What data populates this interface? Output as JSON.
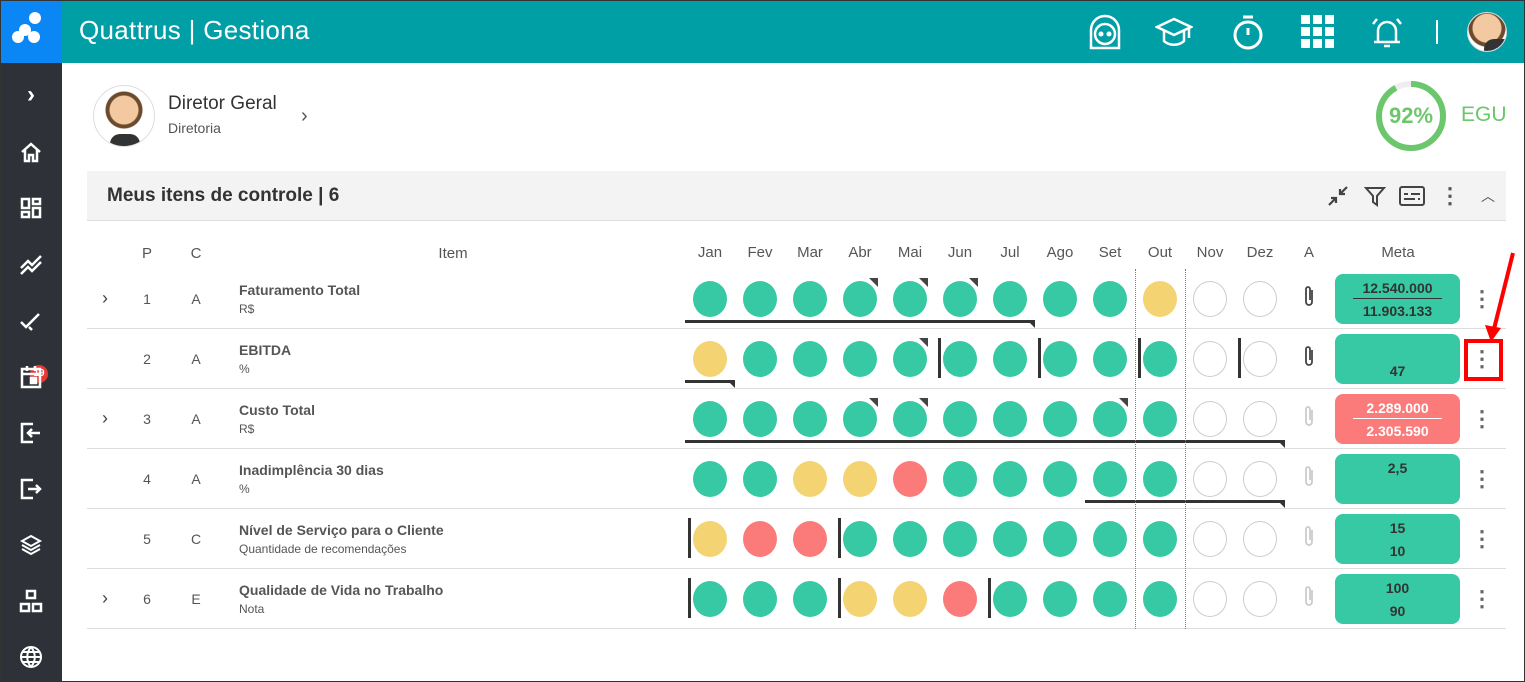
{
  "app": {
    "title": "Quattrus | Gestiona"
  },
  "header_icons": [
    "support-icon",
    "graduation-cap-icon",
    "stopwatch-icon",
    "apps-grid-icon",
    "alarm-bell-icon",
    "user-avatar"
  ],
  "sidebar": {
    "items": [
      "expand",
      "home",
      "dashboard",
      "trends",
      "tasks",
      "calendar",
      "login",
      "logout",
      "layers",
      "structure",
      "globe"
    ],
    "tasks_badge": "19"
  },
  "user": {
    "name": "Diretor Geral",
    "department": "Diretoria"
  },
  "egu": {
    "percent": 92,
    "percent_label": "92%",
    "label": "EGU"
  },
  "panel": {
    "title": "Meus itens de controle | 6"
  },
  "table": {
    "headers": {
      "p": "P",
      "c": "C",
      "item": "Item",
      "a": "A",
      "meta": "Meta"
    },
    "months": [
      "Jan",
      "Fev",
      "Mar",
      "Abr",
      "Mai",
      "Jun",
      "Jul",
      "Ago",
      "Set",
      "Out",
      "Nov",
      "Dez"
    ],
    "rows": [
      {
        "expand": true,
        "p": "1",
        "c": "A",
        "title": "Faturamento Total",
        "unit": "R$",
        "status": [
          "g",
          "g",
          "g",
          "g",
          "g",
          "g",
          "g",
          "g",
          "g",
          "y",
          "e",
          "e"
        ],
        "flags": [
          3,
          4,
          5
        ],
        "bars": [],
        "underline": [
          0,
          6
        ],
        "attachment": true,
        "meta": {
          "type": "green",
          "top": "12.540.000",
          "bottom": "11.903.133",
          "divider": true
        }
      },
      {
        "expand": false,
        "p": "2",
        "c": "A",
        "title": "EBITDA",
        "unit": "%",
        "status": [
          "y",
          "g",
          "g",
          "g",
          "g",
          "g",
          "g",
          "g",
          "g",
          "g",
          "e",
          "e"
        ],
        "flags": [
          4
        ],
        "bars": [
          5,
          7,
          9,
          11
        ],
        "underline": [
          0,
          0
        ],
        "attachment": true,
        "meta": {
          "type": "green",
          "top": "",
          "bottom": "47",
          "divider": false
        }
      },
      {
        "expand": true,
        "p": "3",
        "c": "A",
        "title": "Custo Total",
        "unit": "R$",
        "status": [
          "g",
          "g",
          "g",
          "g",
          "g",
          "g",
          "g",
          "g",
          "g",
          "g",
          "e",
          "e"
        ],
        "flags": [
          3,
          4,
          8
        ],
        "bars": [],
        "underline": [
          0,
          11
        ],
        "attachment": false,
        "meta": {
          "type": "red",
          "top": "2.289.000",
          "bottom": "2.305.590",
          "divider": true
        }
      },
      {
        "expand": false,
        "p": "4",
        "c": "A",
        "title": "Inadimplência 30 dias",
        "unit": "%",
        "status": [
          "g",
          "g",
          "y",
          "y",
          "r",
          "g",
          "g",
          "g",
          "g",
          "g",
          "e",
          "e"
        ],
        "flags": [],
        "bars": [],
        "underline": [
          8,
          11
        ],
        "attachment": false,
        "meta": {
          "type": "green",
          "top": "2,5",
          "bottom": "",
          "divider": false
        }
      },
      {
        "expand": false,
        "p": "5",
        "c": "C",
        "title": "Nível de Serviço para o Cliente",
        "unit": "Quantidade de recomendações",
        "status": [
          "y",
          "r",
          "r",
          "g",
          "g",
          "g",
          "g",
          "g",
          "g",
          "g",
          "e",
          "e"
        ],
        "flags": [],
        "bars": [
          0,
          3
        ],
        "underline": null,
        "attachment": false,
        "meta": {
          "type": "green",
          "top": "15",
          "bottom": "10",
          "divider": false
        }
      },
      {
        "expand": true,
        "p": "6",
        "c": "E",
        "title": "Qualidade de Vida no Trabalho",
        "unit": "Nota",
        "status": [
          "g",
          "g",
          "g",
          "y",
          "y",
          "r",
          "g",
          "g",
          "g",
          "g",
          "e",
          "e"
        ],
        "flags": [],
        "bars": [
          0,
          3,
          6
        ],
        "underline": null,
        "attachment": false,
        "meta": {
          "type": "green",
          "top": "100",
          "bottom": "90",
          "divider": false
        }
      }
    ]
  },
  "colors": {
    "header": "#009ea5",
    "sidebar": "#2e3238",
    "green": "#36c9a3",
    "yellow": "#f4d472",
    "red": "#fb7b7b",
    "egu": "#6cc76c",
    "annotation": "#ff0000"
  }
}
